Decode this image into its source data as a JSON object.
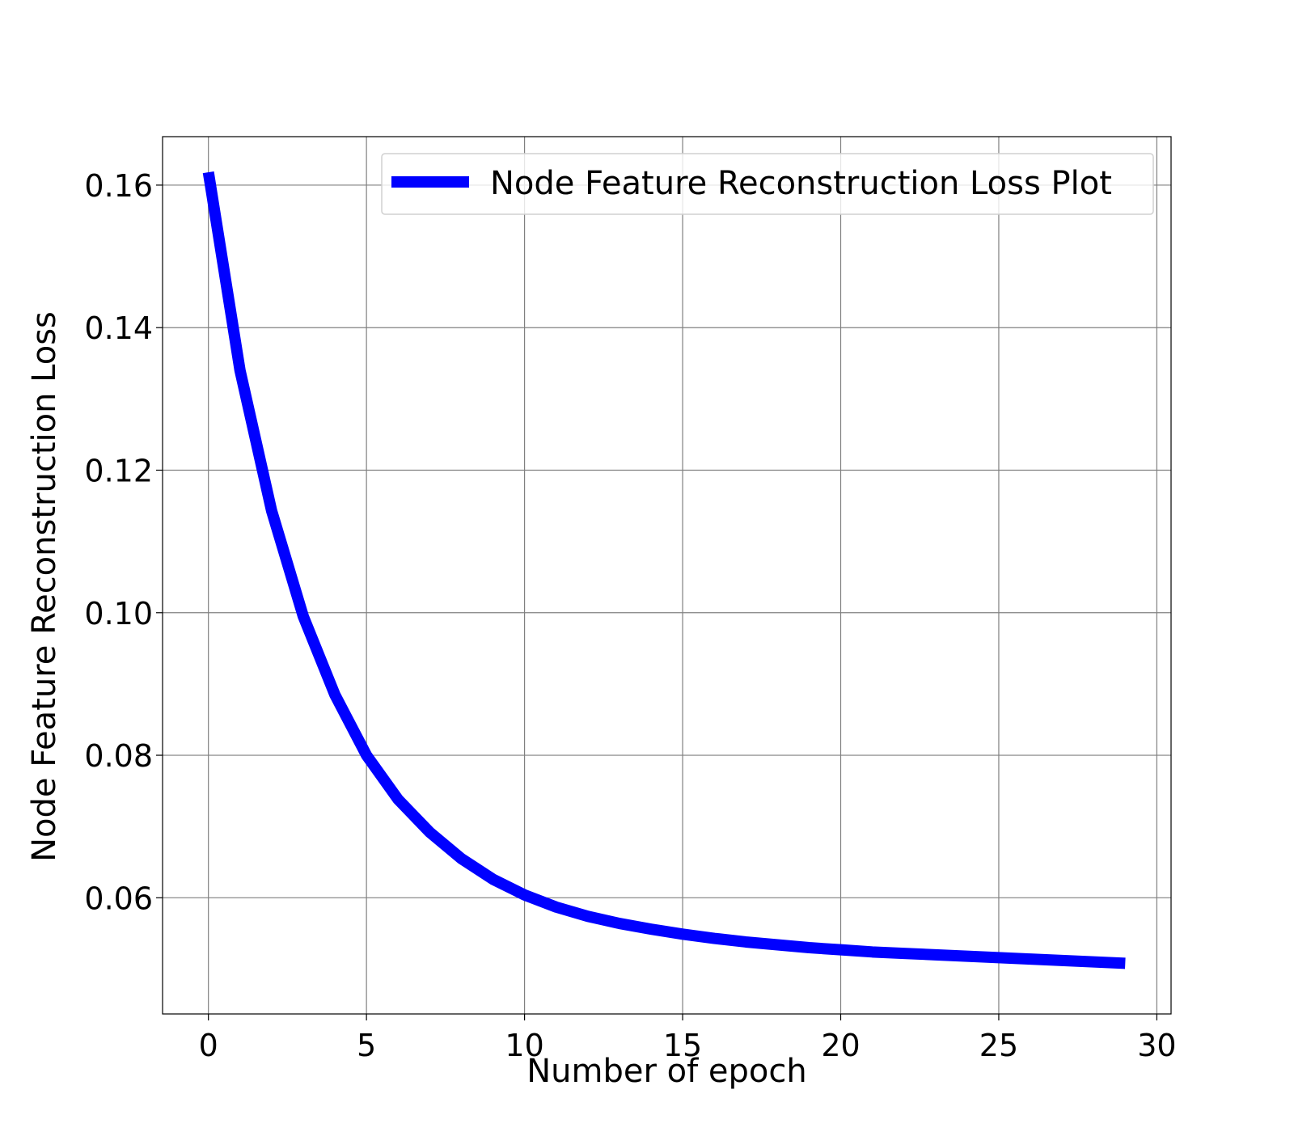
{
  "chart_data": {
    "type": "line",
    "title": "",
    "xlabel": "Number of epoch",
    "ylabel": "Node Feature Reconstruction Loss",
    "xlim": [
      -1.45,
      30.45
    ],
    "ylim": [
      0.0437,
      0.1668
    ],
    "x_ticks": [
      0,
      5,
      10,
      15,
      20,
      25,
      30
    ],
    "x_tick_labels": [
      "0",
      "5",
      "10",
      "15",
      "20",
      "25",
      "30"
    ],
    "y_ticks": [
      0.06,
      0.08,
      0.1,
      0.12,
      0.14,
      0.16
    ],
    "y_tick_labels": [
      "0.06",
      "0.08",
      "0.10",
      "0.12",
      "0.14",
      "0.16"
    ],
    "grid": true,
    "legend_position": "top-right",
    "series": [
      {
        "name": "Node Feature Reconstruction Loss Plot",
        "color": "#0000ff",
        "x": [
          0,
          1,
          2,
          3,
          4,
          5,
          6,
          7,
          8,
          9,
          10,
          11,
          12,
          13,
          14,
          15,
          16,
          17,
          18,
          19,
          20,
          21,
          22,
          23,
          24,
          25,
          26,
          27,
          28,
          29
        ],
        "y": [
          0.1618,
          0.134,
          0.1143,
          0.0995,
          0.0885,
          0.08,
          0.0738,
          0.0692,
          0.0655,
          0.0626,
          0.0604,
          0.0587,
          0.0574,
          0.0564,
          0.0556,
          0.0549,
          0.0543,
          0.0538,
          0.0534,
          0.053,
          0.0527,
          0.0524,
          0.0522,
          0.052,
          0.0518,
          0.0516,
          0.0514,
          0.0512,
          0.051,
          0.0508
        ]
      }
    ]
  }
}
